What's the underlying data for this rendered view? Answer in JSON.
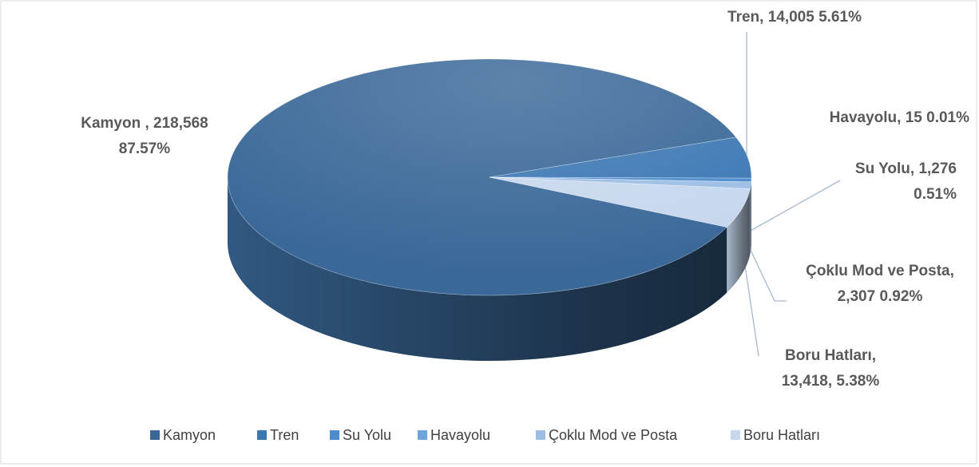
{
  "chart_data": {
    "type": "pie",
    "categories": [
      "Kamyon",
      "Tren",
      "Su Yolu",
      "Havayolu",
      "Çoklu Mod ve Posta",
      "Boru Hatları"
    ],
    "values": [
      218568,
      14005,
      1276,
      15,
      2307,
      13418
    ],
    "value_labels": [
      [
        "Kamyon , 218,568",
        "87.57%"
      ],
      [
        "Tren, 14,005 5.61%"
      ],
      [
        "Su Yolu, 1,276",
        "0.51%"
      ],
      [
        "Havayolu, 15 0.01%"
      ],
      [
        "Çoklu Mod ve Posta,",
        "2,307 0.92%"
      ],
      [
        "Boru Hatları,",
        "13,418, 5.38%"
      ]
    ],
    "colors": [
      "#3a6898",
      "#3b77b3",
      "#4a8ccc",
      "#6ea5dc",
      "#9cbde4",
      "#c6d7ee"
    ],
    "legend": "bottom"
  }
}
